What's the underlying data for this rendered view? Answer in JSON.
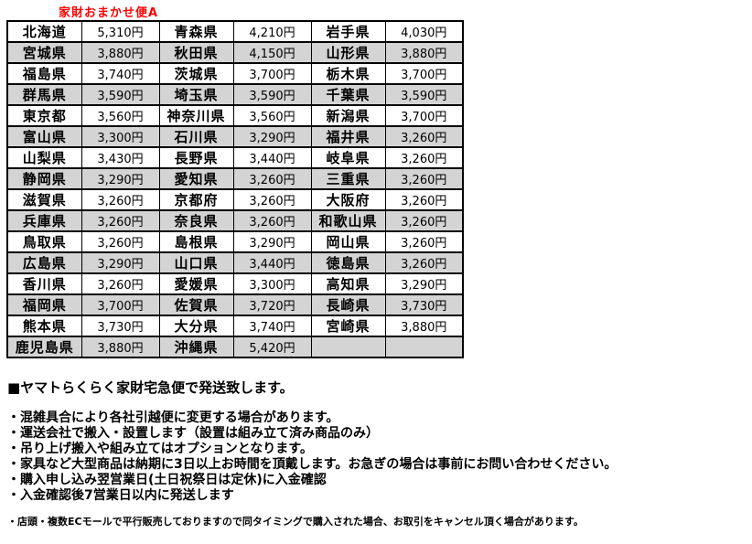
{
  "title": "家財おまかせ便A",
  "colors": {
    "title_text": "#ff0000",
    "shaded_row": "#d4d4d4",
    "border": "#000000"
  },
  "shipping_table": {
    "rows": [
      {
        "cells": [
          [
            "北海道",
            "5,310円"
          ],
          [
            "青森県",
            "4,210円"
          ],
          [
            "岩手県",
            "4,030円"
          ]
        ]
      },
      {
        "cells": [
          [
            "宮城県",
            "3,880円"
          ],
          [
            "秋田県",
            "4,150円"
          ],
          [
            "山形県",
            "3,880円"
          ]
        ]
      },
      {
        "cells": [
          [
            "福島県",
            "3,740円"
          ],
          [
            "茨城県",
            "3,700円"
          ],
          [
            "栃木県",
            "3,700円"
          ]
        ]
      },
      {
        "cells": [
          [
            "群馬県",
            "3,590円"
          ],
          [
            "埼玉県",
            "3,590円"
          ],
          [
            "千葉県",
            "3,590円"
          ]
        ]
      },
      {
        "cells": [
          [
            "東京都",
            "3,560円"
          ],
          [
            "神奈川県",
            "3,560円"
          ],
          [
            "新潟県",
            "3,700円"
          ]
        ]
      },
      {
        "cells": [
          [
            "富山県",
            "3,300円"
          ],
          [
            "石川県",
            "3,290円"
          ],
          [
            "福井県",
            "3,260円"
          ]
        ]
      },
      {
        "cells": [
          [
            "山梨県",
            "3,430円"
          ],
          [
            "長野県",
            "3,440円"
          ],
          [
            "岐阜県",
            "3,260円"
          ]
        ]
      },
      {
        "cells": [
          [
            "静岡県",
            "3,290円"
          ],
          [
            "愛知県",
            "3,260円"
          ],
          [
            "三重県",
            "3,260円"
          ]
        ]
      },
      {
        "cells": [
          [
            "滋賀県",
            "3,260円"
          ],
          [
            "京都府",
            "3,260円"
          ],
          [
            "大阪府",
            "3,260円"
          ]
        ]
      },
      {
        "cells": [
          [
            "兵庫県",
            "3,260円"
          ],
          [
            "奈良県",
            "3,260円"
          ],
          [
            "和歌山県",
            "3,260円"
          ]
        ]
      },
      {
        "cells": [
          [
            "鳥取県",
            "3,260円"
          ],
          [
            "島根県",
            "3,290円"
          ],
          [
            "岡山県",
            "3,260円"
          ]
        ]
      },
      {
        "cells": [
          [
            "広島県",
            "3,290円"
          ],
          [
            "山口県",
            "3,440円"
          ],
          [
            "徳島県",
            "3,260円"
          ]
        ]
      },
      {
        "cells": [
          [
            "香川県",
            "3,260円"
          ],
          [
            "愛媛県",
            "3,300円"
          ],
          [
            "高知県",
            "3,290円"
          ]
        ]
      },
      {
        "cells": [
          [
            "福岡県",
            "3,700円"
          ],
          [
            "佐賀県",
            "3,720円"
          ],
          [
            "長崎県",
            "3,730円"
          ]
        ]
      },
      {
        "cells": [
          [
            "熊本県",
            "3,730円"
          ],
          [
            "大分県",
            "3,740円"
          ],
          [
            "宮崎県",
            "3,880円"
          ]
        ]
      },
      {
        "cells": [
          [
            "鹿児島県",
            "3,880円"
          ],
          [
            "沖縄県",
            "5,420円"
          ],
          [
            "",
            ""
          ]
        ]
      }
    ]
  },
  "notes": {
    "heading": "■ヤマトらくらく家財宅急便で発送致します。",
    "bullets": [
      "・混雑具合により各社引越便に変更する場合があります。",
      "・運送会社で搬入・設置します（設置は組み立て済み商品のみ）",
      "・吊り上げ搬入や組み立てはオプションとなります。",
      "・家具など大型商品は納期に3日以上お時間を頂戴します。お急ぎの場合は事前にお問い合わせください。",
      "・購入申し込み翌営業日(土日祝祭日は定休)に入金確認",
      "・入金確認後7営業日以内に発送します"
    ],
    "disclaimer": "・店頭・複数ECモールで平行販売しておりますので同タイミングで購入された場合、お取引をキャンセル頂く場合があります。"
  }
}
